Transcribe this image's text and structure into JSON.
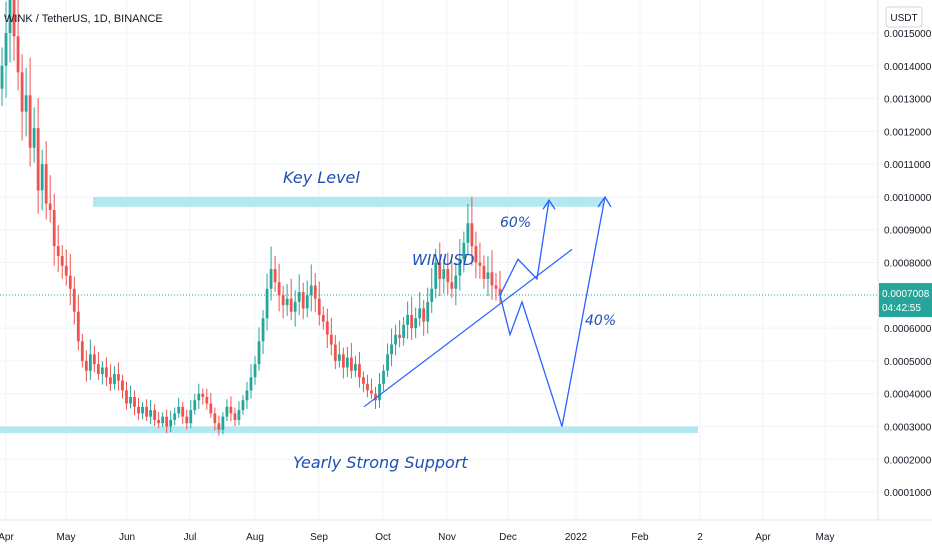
{
  "header": {
    "symbol_line": "WINK / TetherUS, 1D, BINANCE"
  },
  "price_axis": {
    "currency_label": "USDT",
    "ticks": [
      "0.0015000",
      "0.0014000",
      "0.0013000",
      "0.0012000",
      "0.0011000",
      "0.0010000",
      "0.0009000",
      "0.0008000",
      "0.0006000",
      "0.0005000",
      "0.0004000",
      "0.0003000",
      "0.0002000",
      "0.0001000"
    ],
    "last_price": "0.0007008",
    "countdown": "04:42:55"
  },
  "time_axis": {
    "ticks": [
      "Apr",
      "May",
      "Jun",
      "Jul",
      "Aug",
      "Sep",
      "Oct",
      "Nov",
      "Dec",
      "2022",
      "Feb",
      "2",
      "Apr",
      "May"
    ]
  },
  "annotations": {
    "key_level": "Key Level",
    "yearly_support": "Yearly Strong Support",
    "pair_label": "WINUSD",
    "pct_up": "60%",
    "pct_down": "40%"
  },
  "colors": {
    "up": "#26a69a",
    "down": "#ef5350",
    "zone": "#b2e8f0",
    "drawing": "#2962ff",
    "price_tag": "#26a69a"
  },
  "chart_data": {
    "type": "candlestick",
    "title": "WINK / TetherUS, 1D, BINANCE",
    "xlabel": "",
    "ylabel": "",
    "ylim": [
      0,
      0.0016
    ],
    "x_ticks": [
      "Apr",
      "May",
      "Jun",
      "Jul",
      "Aug",
      "Sep",
      "Oct",
      "Nov",
      "Dec",
      "2022",
      "Feb",
      "2",
      "Apr",
      "May"
    ],
    "grid": true,
    "last_price": 0.0007008,
    "key_level_zone": [
      0.00097,
      0.001
    ],
    "support_zone": [
      0.00028,
      0.0003
    ],
    "trendline": [
      {
        "date": "2021-09-25",
        "price": 0.00037
      },
      {
        "date": "2022-01-01",
        "price": 0.00084
      }
    ],
    "path_up": [
      0.0007,
      0.00081,
      0.00075,
      0.00099
    ],
    "path_down": [
      0.0007,
      0.00058,
      0.00068,
      0.0003,
      0.001
    ],
    "closes": [
      0.0014,
      0.0015,
      0.00162,
      0.00149,
      0.00138,
      0.00126,
      0.00131,
      0.00115,
      0.00121,
      0.00102,
      0.0011,
      0.00098,
      0.00096,
      0.00085,
      0.00082,
      0.00079,
      0.00076,
      0.00072,
      0.00065,
      0.00056,
      0.0005,
      0.00047,
      0.00052,
      0.00049,
      0.00046,
      0.00048,
      0.00045,
      0.00043,
      0.00046,
      0.00044,
      0.00041,
      0.00037,
      0.00039,
      0.00036,
      0.00034,
      0.00036,
      0.00033,
      0.00035,
      0.00032,
      0.00031,
      0.00033,
      0.0003,
      0.00032,
      0.00034,
      0.00036,
      0.00033,
      0.00031,
      0.00035,
      0.00038,
      0.0004,
      0.00039,
      0.00037,
      0.00034,
      0.00031,
      0.00029,
      0.00033,
      0.00036,
      0.00034,
      0.00032,
      0.00035,
      0.00038,
      0.00041,
      0.00045,
      0.00049,
      0.00056,
      0.00063,
      0.00072,
      0.00078,
      0.00074,
      0.0007,
      0.00067,
      0.00069,
      0.00065,
      0.00068,
      0.00071,
      0.00066,
      0.0007,
      0.00073,
      0.00069,
      0.00064,
      0.00062,
      0.00058,
      0.00055,
      0.0005,
      0.00052,
      0.00048,
      0.00051,
      0.00047,
      0.00049,
      0.00045,
      0.00043,
      0.00041,
      0.0004,
      0.00038,
      0.00043,
      0.00047,
      0.00052,
      0.00055,
      0.00058,
      0.00057,
      0.00061,
      0.00064,
      0.0006,
      0.00063,
      0.00066,
      0.00062,
      0.00068,
      0.00072,
      0.0008,
      0.00075,
      0.00078,
      0.00074,
      0.00072,
      0.00076,
      0.00081,
      0.00086,
      0.00092,
      0.00085,
      0.0008,
      0.00079,
      0.00075,
      0.00077,
      0.00073,
      0.00072,
      0.0007
    ]
  }
}
